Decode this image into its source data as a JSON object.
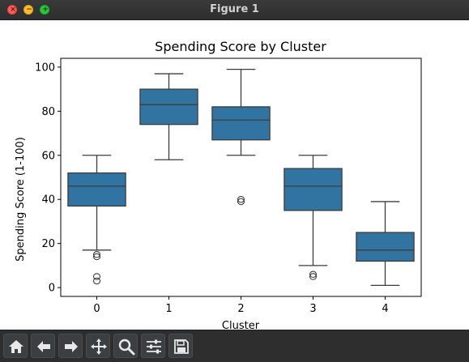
{
  "window": {
    "title": "Figure 1"
  },
  "toolbar": {
    "buttons": [
      "home-icon",
      "back-arrow-icon",
      "forward-arrow-icon",
      "pan-icon",
      "zoom-icon",
      "configure-subplots-icon",
      "save-icon"
    ]
  },
  "colors": {
    "box_fill": "#3274a1",
    "line": "#3d3d3d"
  },
  "chart_data": {
    "type": "box",
    "title": "Spending Score by Cluster",
    "xlabel": "Cluster",
    "ylabel": "Spending Score (1-100)",
    "categories": [
      "0",
      "1",
      "2",
      "3",
      "4"
    ],
    "ylim": [
      -4,
      104
    ],
    "yticks": [
      0,
      20,
      40,
      60,
      80,
      100
    ],
    "grid": false,
    "boxes": [
      {
        "category": "0",
        "whisker_low": 17,
        "q1": 37,
        "median": 46,
        "q3": 52,
        "whisker_high": 60,
        "outliers": [
          14,
          15,
          3,
          5
        ]
      },
      {
        "category": "1",
        "whisker_low": 58,
        "q1": 74,
        "median": 83,
        "q3": 90,
        "whisker_high": 97,
        "outliers": []
      },
      {
        "category": "2",
        "whisker_low": 60,
        "q1": 67,
        "median": 76,
        "q3": 82,
        "whisker_high": 99,
        "outliers": [
          39,
          40
        ]
      },
      {
        "category": "3",
        "whisker_low": 10,
        "q1": 35,
        "median": 46,
        "q3": 54,
        "whisker_high": 60,
        "outliers": [
          5,
          6
        ]
      },
      {
        "category": "4",
        "whisker_low": 1,
        "q1": 12,
        "median": 17,
        "q3": 25,
        "whisker_high": 39,
        "outliers": []
      }
    ]
  }
}
